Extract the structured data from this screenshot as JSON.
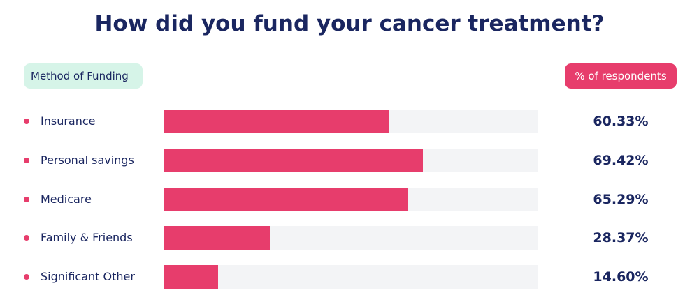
{
  "chart_data": {
    "type": "bar",
    "orientation": "horizontal",
    "title": "How did you fund your cancer treatment?",
    "category_header": "Method of Funding",
    "value_header": "% of respondents",
    "categories": [
      "Insurance",
      "Personal savings",
      "Medicare",
      "Family & Friends",
      "Significant Other"
    ],
    "values": [
      60.33,
      69.42,
      65.29,
      28.37,
      14.6
    ],
    "value_labels": [
      "60.33%",
      "69.42%",
      "65.29%",
      "28.37%",
      "14.60%"
    ],
    "xlim": [
      0,
      100
    ],
    "unit": "%",
    "legend": "none",
    "grid": false,
    "colors": {
      "bar": "#e73d6c",
      "track": "#f3f4f6",
      "text": "#1a2660",
      "category_header_bg": "#d6f4e8",
      "value_header_bg": "#e73d6c"
    }
  }
}
